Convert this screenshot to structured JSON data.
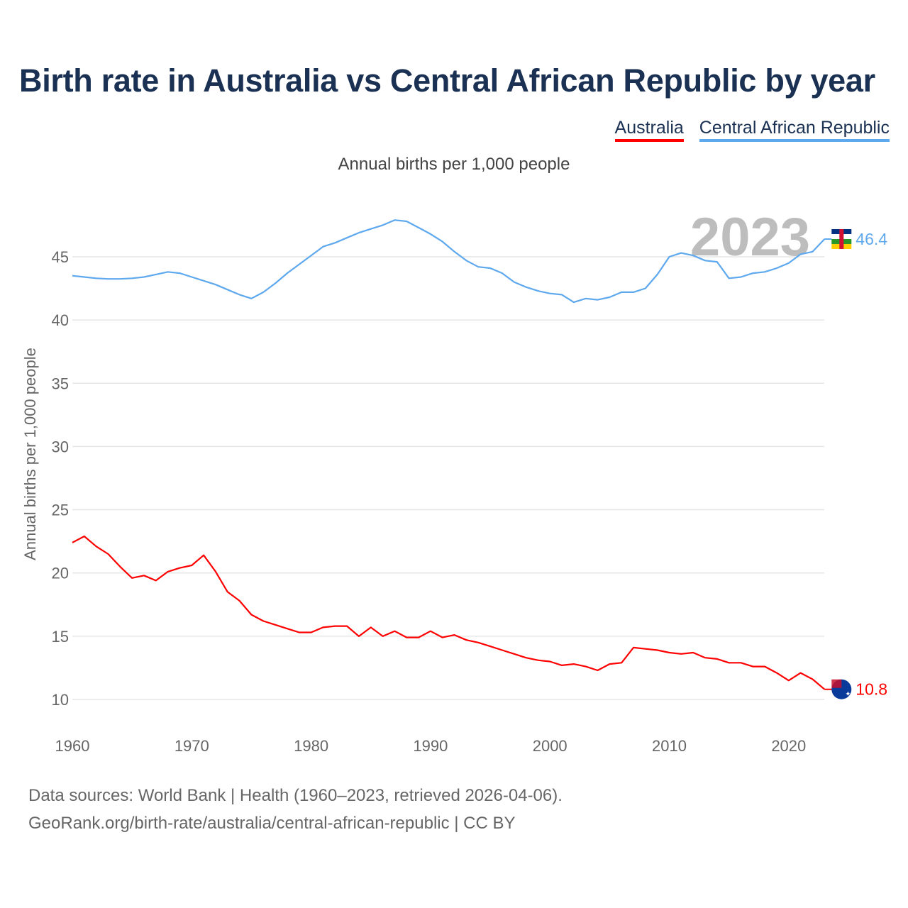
{
  "chart_data": {
    "type": "line",
    "title": "Birth rate in Australia vs Central African Republic by year",
    "subtitle": "Annual births per 1,000 people",
    "xlabel": "",
    "ylabel": "Annual births per 1,000 people",
    "xlim": [
      1960,
      2023
    ],
    "ylim": [
      10,
      48
    ],
    "x_ticks": [
      1960,
      1970,
      1980,
      1990,
      2000,
      2010,
      2020
    ],
    "y_ticks": [
      10,
      15,
      20,
      25,
      30,
      35,
      40,
      45
    ],
    "grid": true,
    "legend_position": "top-right",
    "highlight_year": "2023",
    "x": [
      1960,
      1961,
      1962,
      1963,
      1964,
      1965,
      1966,
      1967,
      1968,
      1969,
      1970,
      1971,
      1972,
      1973,
      1974,
      1975,
      1976,
      1977,
      1978,
      1979,
      1980,
      1981,
      1982,
      1983,
      1984,
      1985,
      1986,
      1987,
      1988,
      1989,
      1990,
      1991,
      1992,
      1993,
      1994,
      1995,
      1996,
      1997,
      1998,
      1999,
      2000,
      2001,
      2002,
      2003,
      2004,
      2005,
      2006,
      2007,
      2008,
      2009,
      2010,
      2011,
      2012,
      2013,
      2014,
      2015,
      2016,
      2017,
      2018,
      2019,
      2020,
      2021,
      2022,
      2023
    ],
    "series": [
      {
        "name": "Australia",
        "color": "#ff0000",
        "end_label": "10.8",
        "values": [
          22.4,
          22.9,
          22.1,
          21.5,
          20.5,
          19.6,
          19.8,
          19.4,
          20.1,
          20.4,
          20.6,
          21.4,
          20.1,
          18.5,
          17.8,
          16.7,
          16.2,
          15.9,
          15.6,
          15.3,
          15.3,
          15.7,
          15.8,
          15.8,
          15.0,
          15.7,
          15.0,
          15.4,
          14.9,
          14.9,
          15.4,
          14.9,
          15.1,
          14.7,
          14.5,
          14.2,
          13.9,
          13.6,
          13.3,
          13.1,
          13.0,
          12.7,
          12.8,
          12.6,
          12.3,
          12.8,
          12.9,
          14.1,
          14.0,
          13.9,
          13.7,
          13.6,
          13.7,
          13.3,
          13.2,
          12.9,
          12.9,
          12.6,
          12.6,
          12.1,
          11.5,
          12.1,
          11.6,
          10.8
        ]
      },
      {
        "name": "Central African Republic",
        "color": "#5ea8ee",
        "end_label": "46.4",
        "values": [
          43.5,
          43.4,
          43.3,
          43.25,
          43.25,
          43.3,
          43.4,
          43.6,
          43.8,
          43.7,
          43.4,
          43.1,
          42.8,
          42.4,
          42.0,
          41.7,
          42.2,
          42.9,
          43.7,
          44.4,
          45.1,
          45.8,
          46.1,
          46.5,
          46.9,
          47.2,
          47.5,
          47.9,
          47.8,
          47.3,
          46.8,
          46.2,
          45.4,
          44.7,
          44.2,
          44.1,
          43.7,
          43.0,
          42.6,
          42.3,
          42.1,
          42.0,
          41.4,
          41.7,
          41.6,
          41.8,
          42.2,
          42.2,
          42.5,
          43.6,
          45.0,
          45.3,
          45.1,
          44.7,
          44.6,
          43.3,
          43.4,
          43.7,
          43.8,
          44.1,
          44.5,
          45.2,
          45.4,
          46.4
        ]
      }
    ]
  },
  "source": {
    "line1": "Data sources: World Bank | Health (1960–2023, retrieved 2026-04-06).",
    "line2": "GeoRank.org/birth-rate/australia/central-african-republic | CC BY"
  }
}
